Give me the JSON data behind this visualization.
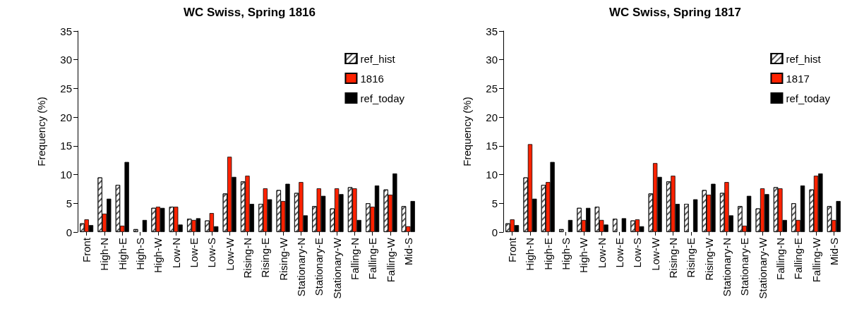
{
  "chart_data": [
    {
      "type": "bar",
      "title": "WC Swiss, Spring 1816",
      "ylabel": "Frequency (%)",
      "categories": [
        "Front",
        "High-N",
        "High-E",
        "High-S",
        "High-W",
        "Low-N",
        "Low-E",
        "Low-S",
        "Low-W",
        "Rising-N",
        "Rising-E",
        "Rising-W",
        "Stationary-N",
        "Stationary-E",
        "Stationary-W",
        "Falling-N",
        "Falling-E",
        "Falling-W",
        "Mid-S"
      ],
      "series": [
        {
          "name": "ref_hist",
          "color": "#ffffff",
          "values": [
            1.5,
            9.5,
            8.2,
            0.5,
            4.2,
            4.4,
            2.3,
            2.0,
            6.7,
            8.8,
            4.9,
            7.3,
            6.8,
            4.5,
            4.1,
            7.8,
            5.0,
            7.4,
            4.5
          ]
        },
        {
          "name": "1816",
          "color": "#ff2200",
          "values": [
            2.2,
            3.2,
            1.1,
            0,
            4.4,
            4.4,
            2.1,
            3.3,
            13.1,
            9.8,
            7.6,
            5.4,
            8.7,
            7.6,
            7.6,
            7.6,
            4.4,
            6.5,
            1.0
          ]
        },
        {
          "name": "ref_today",
          "color": "#000000",
          "values": [
            1.2,
            5.8,
            12.2,
            2.1,
            4.2,
            1.3,
            2.4,
            1.0,
            9.6,
            4.9,
            5.7,
            8.4,
            2.9,
            6.3,
            6.6,
            2.1,
            8.1,
            10.2,
            5.4
          ]
        }
      ],
      "ylim": [
        0,
        35
      ],
      "yticks": [
        0,
        5,
        10,
        15,
        20,
        25,
        30,
        35
      ],
      "grid": false,
      "legend": "top right"
    },
    {
      "type": "bar",
      "title": "WC Swiss, Spring 1817",
      "ylabel": "Frequency (%)",
      "categories": [
        "Front",
        "High-N",
        "High-E",
        "High-S",
        "High-W",
        "Low-N",
        "Low-E",
        "Low-S",
        "Low-W",
        "Rising-N",
        "Rising-E",
        "Rising-W",
        "Stationary-N",
        "Stationary-E",
        "Stationary-W",
        "Falling-N",
        "Falling-E",
        "Falling-W",
        "Mid-S"
      ],
      "series": [
        {
          "name": "ref_hist",
          "color": "#ffffff",
          "values": [
            1.5,
            9.5,
            8.2,
            0.5,
            4.2,
            4.4,
            2.3,
            2.0,
            6.7,
            8.8,
            4.9,
            7.3,
            6.8,
            4.5,
            4.1,
            7.8,
            5.0,
            7.4,
            4.5
          ]
        },
        {
          "name": "1817",
          "color": "#ff2200",
          "values": [
            2.2,
            15.3,
            8.7,
            0,
            2.1,
            2.1,
            0,
            2.2,
            12.0,
            9.8,
            0,
            6.5,
            8.7,
            1.1,
            7.6,
            7.6,
            2.1,
            9.8,
            2.1
          ]
        },
        {
          "name": "ref_today",
          "color": "#000000",
          "values": [
            1.2,
            5.8,
            12.2,
            2.1,
            4.2,
            1.3,
            2.4,
            1.0,
            9.6,
            4.9,
            5.7,
            8.4,
            2.9,
            6.3,
            6.6,
            2.1,
            8.1,
            10.2,
            5.4
          ]
        }
      ],
      "ylim": [
        0,
        35
      ],
      "yticks": [
        0,
        5,
        10,
        15,
        20,
        25,
        30,
        35
      ],
      "grid": false,
      "legend": "top right"
    }
  ]
}
